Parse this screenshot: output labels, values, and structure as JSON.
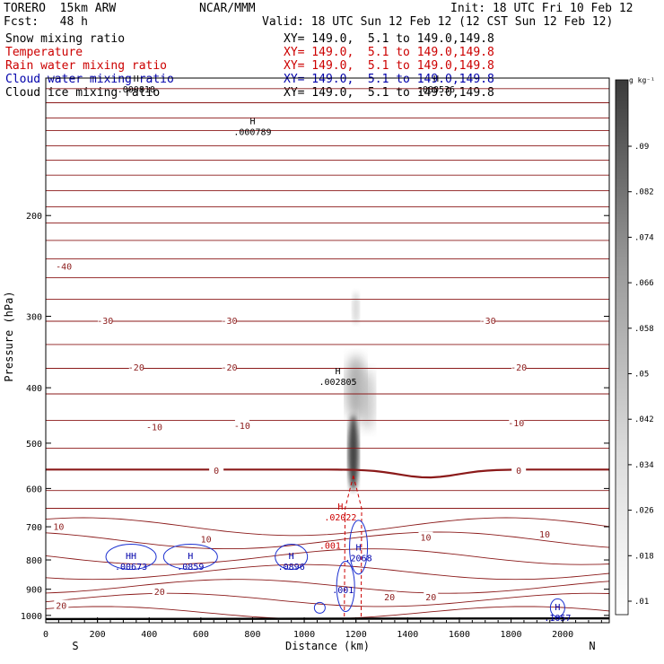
{
  "header": {
    "model": "TORERO  15km ARW",
    "org": "NCAR/MMM",
    "init": "Init: 18 UTC Fri 10 Feb 12",
    "fcst": "Fcst:   48 h",
    "valid": "Valid: 18 UTC Sun 12 Feb 12 (12 CST Sun 12 Feb 12)"
  },
  "legend": [
    {
      "label": "Snow mixing ratio",
      "desc": "XY= 149.0,  5.1 to 149.0,149.8",
      "color": "#000000"
    },
    {
      "label": "Temperature",
      "desc": "XY= 149.0,  5.1 to 149.0,149.8",
      "color": "#cc0000"
    },
    {
      "label": "Rain water mixing ratio",
      "desc": "XY= 149.0,  5.1 to 149.0,149.8",
      "color": "#cc0000"
    },
    {
      "label": "Cloud water mixing ratio",
      "desc": "XY= 149.0,  5.1 to 149.0,149.8",
      "color": "#0000aa"
    },
    {
      "label": "Cloud ice mixing ratio",
      "desc": "XY= 149.0,  5.1 to 149.0,149.8",
      "color": "#000000"
    }
  ],
  "chart_data": {
    "type": "heatmap",
    "xlabel": "Distance (km)",
    "ylabel": "Pressure (hPa)",
    "x_ticks": [
      "0",
      "200",
      "400",
      "600",
      "800",
      "1000",
      "1200",
      "1400",
      "1600",
      "1800",
      "2000"
    ],
    "y_ticks": [
      "200",
      "300",
      "400",
      "500",
      "600",
      "700",
      "800",
      "900",
      "1000"
    ],
    "x_range": [
      0,
      2180
    ],
    "y_range": [
      115,
      1030
    ],
    "y_scale": "log",
    "left_end_label": "S",
    "right_end_label": "N",
    "colorbar_unit": "g kg⁻¹",
    "colorbar_ticks": [
      ".01",
      ".018",
      ".026",
      ".034",
      ".042",
      ".05",
      ".058",
      ".066",
      ".074",
      ".082",
      ".09"
    ],
    "temperature_labels": [
      {
        "text": "-40",
        "x": 70,
        "p": 245
      },
      {
        "text": "-30",
        "x": 230,
        "p": 305
      },
      {
        "text": "-30",
        "x": 710,
        "p": 305
      },
      {
        "text": "-30",
        "x": 1710,
        "p": 305
      },
      {
        "text": "-20",
        "x": 350,
        "p": 368
      },
      {
        "text": "-20",
        "x": 710,
        "p": 368
      },
      {
        "text": "-20",
        "x": 1830,
        "p": 368
      },
      {
        "text": "-10",
        "x": 420,
        "p": 468
      },
      {
        "text": "-10",
        "x": 760,
        "p": 465
      },
      {
        "text": "-10",
        "x": 1820,
        "p": 460
      },
      {
        "text": "0",
        "x": 660,
        "p": 557
      },
      {
        "text": "0",
        "x": 1830,
        "p": 557
      },
      {
        "text": "10",
        "x": 50,
        "p": 698
      },
      {
        "text": "10",
        "x": 620,
        "p": 735
      },
      {
        "text": "10",
        "x": 1470,
        "p": 730
      },
      {
        "text": "10",
        "x": 1930,
        "p": 720
      },
      {
        "text": "20",
        "x": 440,
        "p": 908
      },
      {
        "text": "20",
        "x": 1330,
        "p": 928
      },
      {
        "text": "20",
        "x": 1490,
        "p": 928
      },
      {
        "text": "20",
        "x": 60,
        "p": 960
      }
    ],
    "extrema_labels": [
      {
        "mark": "H",
        "value": ".000810",
        "x": 350,
        "p": 118,
        "color": "#000000"
      },
      {
        "mark": "H",
        "value": ".000789",
        "x": 800,
        "p": 140,
        "color": "#000000"
      },
      {
        "mark": "H",
        "value": ".000536",
        "x": 1510,
        "p": 118,
        "color": "#000000"
      },
      {
        "mark": "H",
        "value": ".002805",
        "x": 1130,
        "p": 383,
        "color": "#000000"
      },
      {
        "mark": "H",
        "value": ".02022",
        "x": 1140,
        "p": 660,
        "color": "#cc0000"
      },
      {
        "mark": "",
        "value": ".001",
        "x": 1100,
        "p": 740,
        "color": "#cc0000"
      },
      {
        "mark": "H",
        "value": ".2068",
        "x": 1210,
        "p": 778,
        "color": "#0000aa"
      },
      {
        "mark": "HH",
        "value": ".00673",
        "x": 330,
        "p": 805,
        "color": "#0000aa"
      },
      {
        "mark": "H",
        "value": ".0859",
        "x": 560,
        "p": 805,
        "color": "#0000aa"
      },
      {
        "mark": "H",
        "value": ".0896",
        "x": 950,
        "p": 805,
        "color": "#0000aa"
      },
      {
        "mark": "",
        "value": ".001",
        "x": 1150,
        "p": 885,
        "color": "#0000aa"
      },
      {
        "mark": "H",
        "value": ".1057",
        "x": 1980,
        "p": 990,
        "color": "#0000aa"
      }
    ]
  }
}
